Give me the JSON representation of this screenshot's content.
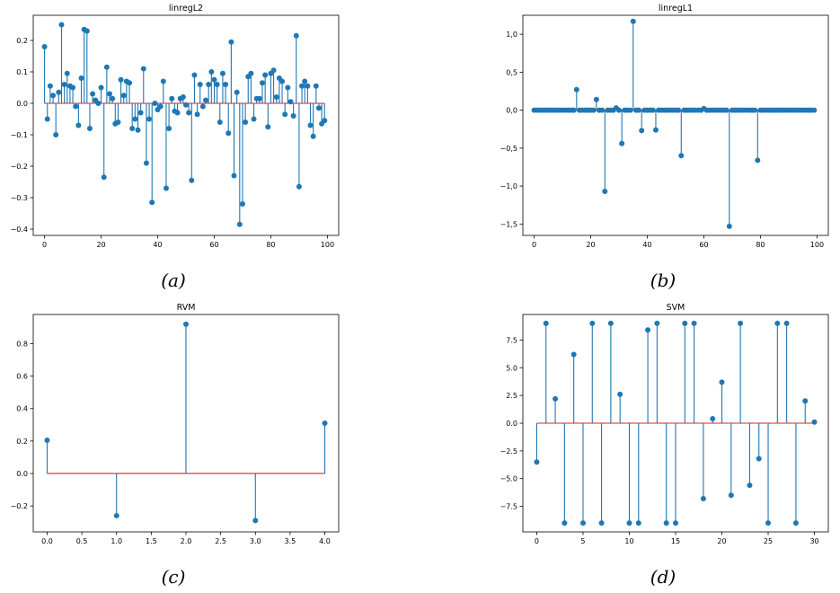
{
  "captions": [
    "(a)",
    "(b)",
    "(c)",
    "(d)"
  ],
  "chart_data": [
    {
      "type": "stem",
      "title": "linregL2",
      "xlabel": "",
      "ylabel": "",
      "xlim": [
        -4,
        104
      ],
      "ylim": [
        -0.42,
        0.28
      ],
      "xticks": [
        0,
        20,
        40,
        60,
        80,
        100
      ],
      "xtick_labels": [
        "0",
        "20",
        "40",
        "60",
        "80",
        "100"
      ],
      "yticks": [
        0.2,
        0.1,
        0.0,
        -0.1,
        -0.2,
        -0.3,
        -0.4
      ],
      "ytick_labels": [
        "0.2",
        "0.1",
        "0.0",
        "−0.1",
        "−0.2",
        "−0.3",
        "−0.4"
      ],
      "baseline": 0,
      "x_start": 0,
      "values": [
        0.18,
        -0.05,
        0.055,
        0.025,
        -0.1,
        0.035,
        0.25,
        0.06,
        0.095,
        0.055,
        0.05,
        -0.01,
        -0.07,
        0.08,
        0.235,
        0.23,
        -0.08,
        0.03,
        0.01,
        0.0,
        0.05,
        -0.235,
        0.115,
        0.03,
        0.015,
        -0.065,
        -0.06,
        0.075,
        0.025,
        0.07,
        0.065,
        -0.08,
        -0.05,
        -0.085,
        -0.03,
        0.11,
        -0.19,
        -0.05,
        -0.315,
        0.0,
        -0.02,
        -0.01,
        0.07,
        -0.27,
        -0.08,
        0.015,
        -0.025,
        -0.03,
        0.015,
        0.02,
        -0.005,
        -0.03,
        -0.245,
        0.09,
        -0.035,
        0.06,
        -0.01,
        0.01,
        0.06,
        0.1,
        0.075,
        0.06,
        -0.06,
        0.095,
        0.06,
        -0.095,
        0.195,
        -0.23,
        0.035,
        -0.385,
        -0.32,
        -0.06,
        0.085,
        0.095,
        -0.05,
        0.015,
        0.015,
        0.065,
        0.09,
        -0.075,
        0.095,
        0.105,
        0.02,
        0.08,
        0.07,
        -0.035,
        0.05,
        0.005,
        -0.04,
        0.215,
        -0.265,
        0.055,
        0.07,
        0.055,
        -0.07,
        -0.105,
        0.055,
        -0.015,
        -0.065,
        -0.055
      ]
    },
    {
      "type": "stem",
      "title": "linregL1",
      "xlabel": "",
      "ylabel": "",
      "xlim": [
        -4,
        104
      ],
      "ylim": [
        -1.65,
        1.25
      ],
      "xticks": [
        0,
        20,
        40,
        60,
        80,
        100
      ],
      "xtick_labels": [
        "0",
        "20",
        "40",
        "60",
        "80",
        "100"
      ],
      "yticks": [
        1.0,
        0.5,
        0.0,
        -0.5,
        -1.0,
        -1.5
      ],
      "ytick_labels": [
        "1,0",
        "0,5",
        "0,0",
        "−0,5",
        "−1,0",
        "−1,5"
      ],
      "baseline": 0,
      "x_start": 0,
      "values": [
        0,
        0,
        0,
        0,
        0,
        0,
        0,
        0,
        0,
        0,
        0,
        0,
        0,
        0,
        0,
        0.27,
        0,
        0,
        0,
        0,
        0,
        0,
        0.14,
        0,
        0,
        -1.07,
        0,
        0,
        0,
        0.03,
        0,
        -0.44,
        0,
        0,
        0,
        1.17,
        0,
        0,
        -0.27,
        0,
        0,
        0,
        0,
        -0.26,
        0,
        0,
        0,
        0,
        0,
        0,
        0,
        0,
        -0.6,
        0,
        0,
        0,
        0,
        0,
        0,
        0,
        0.02,
        0,
        0,
        0,
        0,
        0,
        0,
        0,
        0,
        -1.53,
        0,
        0,
        0,
        0,
        0,
        0,
        0,
        0,
        0,
        -0.66,
        0,
        0,
        0,
        0,
        0,
        0,
        0,
        0,
        0,
        0,
        0,
        0,
        0,
        0,
        0,
        0,
        0,
        0,
        0,
        0
      ]
    },
    {
      "type": "stem",
      "title": "RVM",
      "xlabel": "",
      "ylabel": "",
      "xlim": [
        -0.2,
        4.2
      ],
      "ylim": [
        -0.36,
        0.98
      ],
      "xticks": [
        0,
        0.5,
        1,
        1.5,
        2,
        2.5,
        3,
        3.5,
        4
      ],
      "xtick_labels": [
        "0.0",
        "0.5",
        "1.0",
        "1.5",
        "2.0",
        "2.5",
        "3.0",
        "3.5",
        "4.0"
      ],
      "yticks": [
        0.8,
        0.6,
        0.4,
        0.2,
        0.0,
        -0.2
      ],
      "ytick_labels": [
        "0.8",
        "0.6",
        "0.4",
        "0.2",
        "0.0",
        "−0.2"
      ],
      "baseline": 0,
      "x_start": 0,
      "values": [
        0.205,
        -0.26,
        0.92,
        -0.29,
        0.31
      ]
    },
    {
      "type": "stem",
      "title": "SVM",
      "xlabel": "",
      "ylabel": "",
      "xlim": [
        -1.5,
        31.5
      ],
      "ylim": [
        -9.8,
        9.8
      ],
      "xticks": [
        0,
        5,
        10,
        15,
        20,
        25,
        30
      ],
      "xtick_labels": [
        "0",
        "5",
        "10",
        "15",
        "20",
        "25",
        "30"
      ],
      "yticks": [
        7.5,
        5.0,
        2.5,
        0.0,
        -2.5,
        -5.0,
        -7.5
      ],
      "ytick_labels": [
        "7.5",
        "5.0",
        "2.5",
        "0.0",
        "−2.5",
        "−5.0",
        "−7.5"
      ],
      "baseline": 0,
      "x_start": 0,
      "values": [
        -3.5,
        9,
        2.2,
        -9,
        6.2,
        -9,
        9,
        -9,
        9,
        2.6,
        -9,
        -9,
        8.4,
        9,
        -9,
        -9,
        9,
        9,
        -6.8,
        0.4,
        3.7,
        -6.5,
        9,
        -5.6,
        -3.2,
        -9,
        9,
        9,
        -9,
        2.0,
        0.1
      ]
    }
  ]
}
